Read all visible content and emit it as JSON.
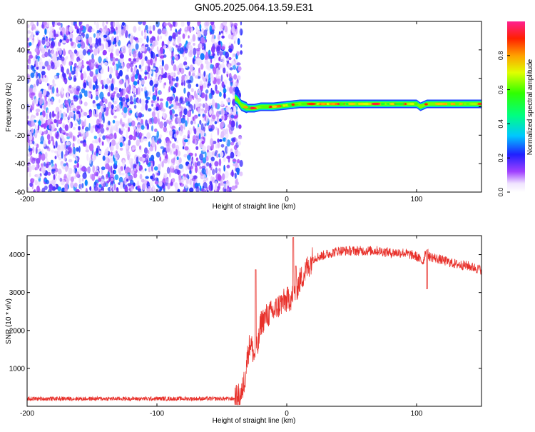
{
  "title": "GN05.2025.064.13.59.E31",
  "chart_data": [
    {
      "type": "heatmap",
      "xlabel": "Height of straight line (km)",
      "ylabel": "Frequency (Hz)",
      "xlim": [
        -200,
        150
      ],
      "ylim": [
        -60,
        60
      ],
      "xticks": [
        -200,
        -100,
        0,
        100
      ],
      "yticks": [
        -60,
        -40,
        -20,
        0,
        20,
        40,
        60
      ],
      "colorbar": {
        "label": "Normalized spectral amplitude",
        "range": [
          0,
          1
        ],
        "ticks": [
          "0.0",
          "0.2",
          "0.4",
          "0.6",
          "0.8"
        ]
      },
      "regions": {
        "noise_x": [
          -200,
          -40
        ],
        "noise_amplitude": [
          0.05,
          0.3
        ],
        "signal_x": [
          -40,
          150
        ],
        "signal_frequency_hz": 2,
        "signal_amplitude": [
          0.5,
          0.95
        ]
      },
      "signal_track": [
        {
          "x": -43,
          "freq": 8
        },
        {
          "x": -38,
          "freq": 5
        },
        {
          "x": -35,
          "freq": 1
        },
        {
          "x": -30,
          "freq": -1
        },
        {
          "x": -25,
          "freq": -1
        },
        {
          "x": -20,
          "freq": 0
        },
        {
          "x": -10,
          "freq": 0
        },
        {
          "x": 0,
          "freq": 1
        },
        {
          "x": 10,
          "freq": 2
        },
        {
          "x": 50,
          "freq": 2
        },
        {
          "x": 100,
          "freq": 2
        },
        {
          "x": 103,
          "freq": 0
        },
        {
          "x": 108,
          "freq": 2
        },
        {
          "x": 150,
          "freq": 2
        }
      ]
    },
    {
      "type": "line",
      "xlabel": "Height of straight line (km)",
      "ylabel": "SNR (10 * v/v)",
      "xlim": [
        -200,
        150
      ],
      "ylim": [
        0,
        4500
      ],
      "xticks": [
        -200,
        -100,
        0,
        100
      ],
      "yticks": [
        1000,
        2000,
        3000,
        4000
      ],
      "color": "#e8302a",
      "series": [
        {
          "x": [
            -200,
            -180,
            -160,
            -140,
            -120,
            -100,
            -80,
            -60,
            -40,
            -35,
            -32,
            -30,
            -28,
            -25,
            -22,
            -20,
            -15,
            -10,
            -5,
            0,
            5,
            10,
            20,
            30,
            40,
            50,
            60,
            70,
            80,
            90,
            100,
            105,
            107,
            110,
            120,
            130,
            140,
            150
          ],
          "values": [
            200,
            200,
            200,
            200,
            200,
            200,
            200,
            200,
            200,
            300,
            800,
            1400,
            1700,
            1300,
            1600,
            2200,
            2400,
            2500,
            2700,
            2800,
            2900,
            3300,
            3900,
            4000,
            4100,
            4100,
            4100,
            4100,
            4050,
            4050,
            3950,
            3800,
            4100,
            3950,
            3850,
            3750,
            3700,
            3600
          ]
        }
      ],
      "spikes": [
        {
          "x": -24,
          "y": 3600
        },
        {
          "x": 5,
          "y": 4450
        },
        {
          "x": 7,
          "y": 3700
        },
        {
          "x": 108,
          "y": 3100
        }
      ]
    }
  ]
}
